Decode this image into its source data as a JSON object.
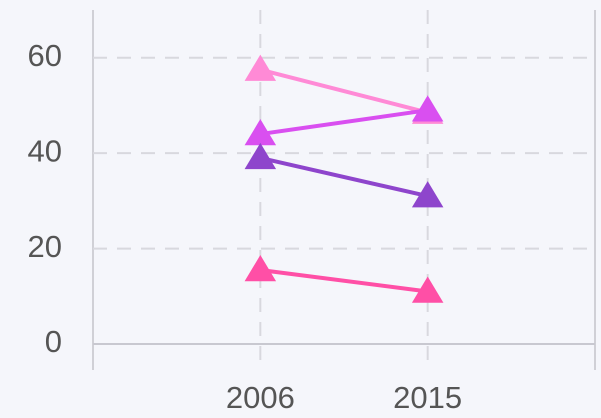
{
  "chart_data": {
    "type": "line",
    "categories": [
      "2006",
      "2015"
    ],
    "series": [
      {
        "color": "#ff8ad6",
        "values": [
          57.5,
          48.5
        ]
      },
      {
        "color": "#d94ff0",
        "values": [
          44,
          49
        ]
      },
      {
        "color": "#8e45cc",
        "values": [
          39,
          31
        ]
      },
      {
        "color": "#ff4fa6",
        "values": [
          15.5,
          11
        ]
      }
    ],
    "ylim": [
      0,
      70
    ],
    "yticks": [
      0,
      20,
      40,
      60
    ],
    "grid": true,
    "marker": "triangle"
  }
}
